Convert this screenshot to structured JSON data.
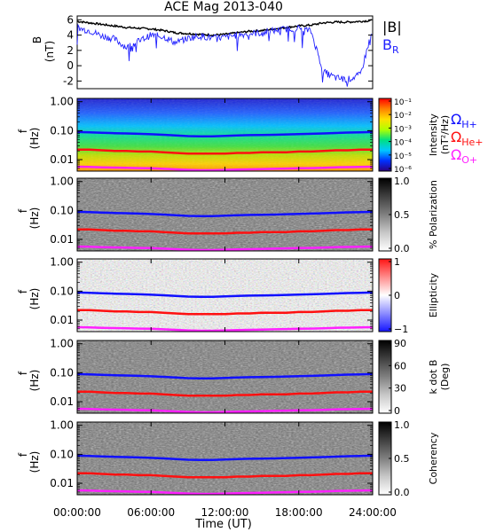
{
  "title": "ACE Mag 2013-040",
  "xlabel": "Time (UT)",
  "time_ticks": [
    "00:00:00",
    "06:00:00",
    "12:00:00",
    "18:00:00",
    "24:00:00"
  ],
  "freq_ticks": [
    "1.00",
    "0.10",
    "0.01"
  ],
  "freq_ylabel": [
    "f",
    "(Hz)"
  ],
  "legend": {
    "b_total": "|B|",
    "b_r": "B",
    "b_r_sub": "R"
  },
  "ion_lines": [
    {
      "label": "Ω",
      "sub": "H+",
      "color": "#1010ff"
    },
    {
      "label": "Ω",
      "sub": "He+",
      "color": "#ff1010"
    },
    {
      "label": "Ω",
      "sub": "O+",
      "color": "#ff20ff"
    }
  ],
  "colorbars": [
    {
      "label": [
        "Intensity",
        "(nT²/Hz)"
      ],
      "ticks": [
        "10⁻¹",
        "10⁻²",
        "10⁻³",
        "10⁻⁴",
        "10⁻⁵",
        "10⁻⁶"
      ]
    },
    {
      "label": [
        "% Polarization"
      ],
      "ticks": [
        "1.0",
        "0.5",
        "0.0"
      ]
    },
    {
      "label": [
        "Ellipticity"
      ],
      "ticks": [
        "1",
        "0",
        "−1"
      ]
    },
    {
      "label": [
        "k dot B",
        "(Deg)"
      ],
      "ticks": [
        "90",
        "60",
        "30",
        "0"
      ]
    },
    {
      "label": [
        "Coherency"
      ],
      "ticks": [
        "1.0",
        "0.5",
        "0.0"
      ]
    }
  ],
  "chart_data": [
    {
      "type": "line",
      "ylabel": "B",
      "yunit": "(nT)",
      "yticks": [
        6,
        4,
        2,
        0,
        -2
      ],
      "ylim": [
        -3,
        6.5
      ],
      "xlim": [
        0,
        24
      ],
      "series": [
        {
          "name": "|B|",
          "color": "#000000",
          "x": [
            0,
            1,
            2,
            3,
            4,
            5,
            6,
            7,
            8,
            9,
            10,
            11,
            12,
            13,
            14,
            15,
            16,
            17,
            18,
            19,
            20,
            21,
            22,
            23,
            24
          ],
          "values": [
            5.8,
            5.6,
            5.4,
            5.2,
            5.0,
            4.9,
            4.8,
            4.6,
            4.3,
            4.2,
            4.1,
            4.0,
            4.1,
            4.3,
            4.5,
            4.6,
            4.8,
            5.0,
            5.2,
            5.3,
            5.6,
            5.7,
            5.7,
            5.8,
            5.9
          ]
        },
        {
          "name": "B_R",
          "color": "#2020ff",
          "x": [
            0,
            1,
            2,
            3,
            4,
            5,
            6,
            7,
            8,
            9,
            10,
            11,
            12,
            13,
            14,
            15,
            16,
            17,
            18,
            19,
            20,
            21,
            22,
            23,
            24
          ],
          "values": [
            4.9,
            4.6,
            3.9,
            3.5,
            2.4,
            3.2,
            4.0,
            3.8,
            3.0,
            3.6,
            3.9,
            3.6,
            3.7,
            4.0,
            4.2,
            4.3,
            4.6,
            4.8,
            4.9,
            4.5,
            -0.8,
            -1.6,
            -1.8,
            -1.2,
            4.9
          ]
        }
      ]
    },
    {
      "type": "heatmap",
      "name": "Intensity",
      "ylim": [
        0.004,
        1.3
      ],
      "xlim": [
        0,
        24
      ],
      "ion_lines": {
        "H+": [
          0.09,
          0.088,
          0.085,
          0.082,
          0.08,
          0.078,
          0.075,
          0.072,
          0.068,
          0.065,
          0.064,
          0.064,
          0.066,
          0.068,
          0.07,
          0.071,
          0.072,
          0.074,
          0.076,
          0.078,
          0.08,
          0.083,
          0.086,
          0.088,
          0.09
        ],
        "He+": [
          0.022,
          0.022,
          0.021,
          0.02,
          0.02,
          0.019,
          0.019,
          0.018,
          0.017,
          0.016,
          0.016,
          0.016,
          0.016,
          0.017,
          0.017,
          0.018,
          0.018,
          0.018,
          0.019,
          0.019,
          0.02,
          0.021,
          0.021,
          0.022,
          0.022
        ],
        "O+": [
          0.0057,
          0.0056,
          0.0054,
          0.0053,
          0.0052,
          0.0051,
          0.005,
          0.0048,
          0.0046,
          0.0044,
          0.0043,
          0.0043,
          0.0044,
          0.0045,
          0.0046,
          0.0047,
          0.0048,
          0.0049,
          0.005,
          0.0051,
          0.0052,
          0.0054,
          0.0055,
          0.0056,
          0.0057
        ]
      }
    },
    {
      "type": "heatmap",
      "name": "% Polarization",
      "ylim": [
        0.004,
        1.3
      ],
      "xlim": [
        0,
        24
      ]
    },
    {
      "type": "heatmap",
      "name": "Ellipticity",
      "ylim": [
        0.004,
        1.3
      ],
      "xlim": [
        0,
        24
      ]
    },
    {
      "type": "heatmap",
      "name": "k dot B",
      "ylim": [
        0.004,
        1.3
      ],
      "xlim": [
        0,
        24
      ]
    },
    {
      "type": "heatmap",
      "name": "Coherency",
      "ylim": [
        0.004,
        1.3
      ],
      "xlim": [
        0,
        24
      ]
    }
  ]
}
